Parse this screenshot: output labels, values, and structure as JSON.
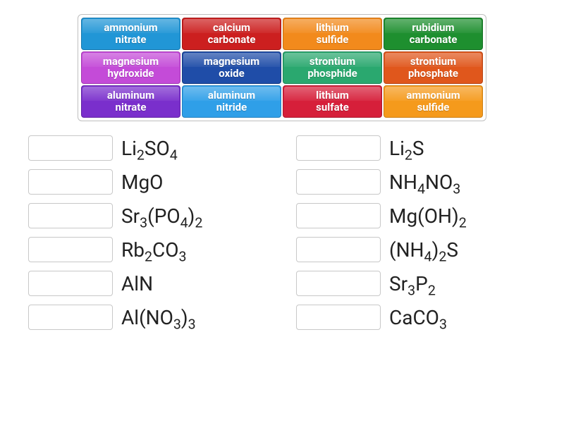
{
  "tiles": [
    {
      "label_line1": "ammonium",
      "label_line2": "nitrate",
      "bg": "#2196d6",
      "border": "#1a7ab0"
    },
    {
      "label_line1": "calcium",
      "label_line2": "carbonate",
      "bg": "#cc1f1f",
      "border": "#a41818"
    },
    {
      "label_line1": "lithium",
      "label_line2": "sulfide",
      "bg": "#f28a1c",
      "border": "#c86f14"
    },
    {
      "label_line1": "rubidium",
      "label_line2": "carbonate",
      "bg": "#1e8f2f",
      "border": "#166f24"
    },
    {
      "label_line1": "magnesium",
      "label_line2": "hydroxide",
      "bg": "#c44bd8",
      "border": "#a338b4"
    },
    {
      "label_line1": "magnesium",
      "label_line2": "oxide",
      "bg": "#1f4da8",
      "border": "#173b82"
    },
    {
      "label_line1": "strontium",
      "label_line2": "phosphide",
      "bg": "#2aa86f",
      "border": "#1f8457"
    },
    {
      "label_line1": "strontium",
      "label_line2": "phosphate",
      "bg": "#e0571c",
      "border": "#b64516"
    },
    {
      "label_line1": "aluminum",
      "label_line2": "nitrate",
      "bg": "#7a2fcc",
      "border": "#6224a6"
    },
    {
      "label_line1": "aluminum",
      "label_line2": "nitride",
      "bg": "#2f9fe8",
      "border": "#2480bd"
    },
    {
      "label_line1": "lithium",
      "label_line2": "sulfate",
      "bg": "#d61f3a",
      "border": "#ac182e"
    },
    {
      "label_line1": "ammonium",
      "label_line2": "sulfide",
      "bg": "#f59a1c",
      "border": "#cc7f14"
    }
  ],
  "formulas_left": [
    {
      "html": "Li<sub>2</sub>SO<sub>4</sub>"
    },
    {
      "html": "MgO"
    },
    {
      "html": "Sr<sub>3</sub>(PO<sub>4</sub>)<sub>2</sub>"
    },
    {
      "html": "Rb<sub>2</sub>CO<sub>3</sub>"
    },
    {
      "html": "AlN"
    },
    {
      "html": "Al(NO<sub>3</sub>)<sub>3</sub>"
    }
  ],
  "formulas_right": [
    {
      "html": "Li<sub>2</sub>S"
    },
    {
      "html": "NH<sub>4</sub>NO<sub>3</sub>"
    },
    {
      "html": "Mg(OH)<sub>2</sub>"
    },
    {
      "html": "(NH<sub>4</sub>)<sub>2</sub>S"
    },
    {
      "html": "Sr<sub>3</sub>P<sub>2</sub>"
    },
    {
      "html": "CaCO<sub>3</sub>"
    }
  ],
  "style": {
    "tile_fontsize": 15,
    "formula_fontsize": 28,
    "tile_text_color": "#ffffff",
    "formula_text_color": "#222222",
    "container_border_color": "#bfbfbf",
    "slot_border_color": "#c8c8c8",
    "background_color": "#ffffff"
  }
}
